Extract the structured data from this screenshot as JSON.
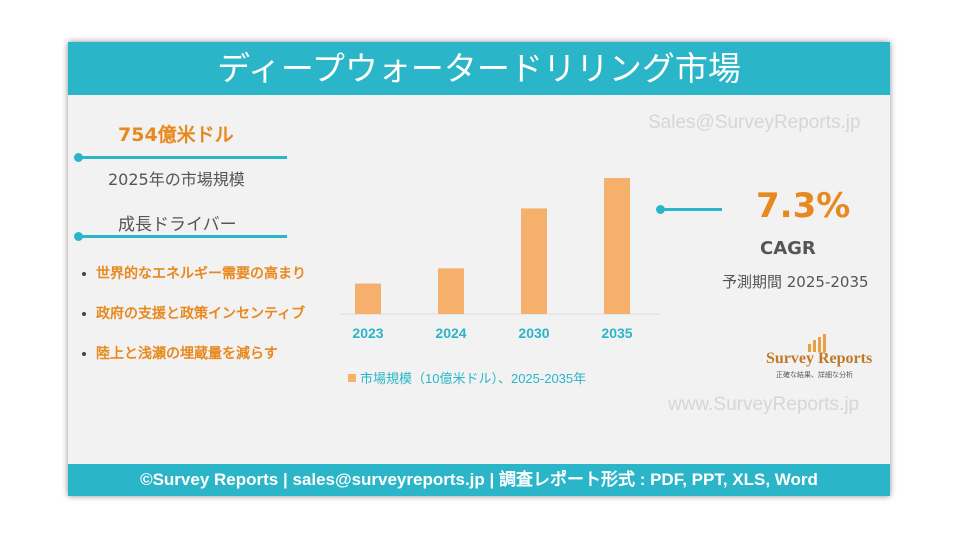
{
  "header": {
    "title": "ディープウォータードリリング市場"
  },
  "watermarks": {
    "email": "Sales@SurveyReports.jp",
    "url": "www.SurveyReports.jp"
  },
  "market_size": {
    "value": "754億米ドル",
    "label": "2025年の市場規模"
  },
  "drivers": {
    "title": "成長ドライバー",
    "items": [
      "世界的なエネルギー需要の高まり",
      "政府の支援と政策インセンティブ",
      "陸上と浅瀬の埋蔵量を減らす"
    ]
  },
  "cagr": {
    "value": "7.3%",
    "label": "CAGR",
    "period": "予測期間 2025-2035"
  },
  "logo": {
    "name": "Survey Reports",
    "tagline": "正確な結果、詳細な分析"
  },
  "footer": {
    "text": "©Survey Reports | sales@surveyreports.jp | 調査レポート形式 : PDF, PPT, XLS, Word"
  },
  "chart_data": {
    "type": "bar",
    "categories": [
      "2023",
      "2024",
      "2030",
      "2035"
    ],
    "series": [
      {
        "name": "市場規模（10億米ドル）、2025-2035年",
        "color": "#f5b06b",
        "values": [
          34,
          51,
          118,
          152
        ]
      }
    ],
    "ylim": [
      0,
      152
    ]
  }
}
